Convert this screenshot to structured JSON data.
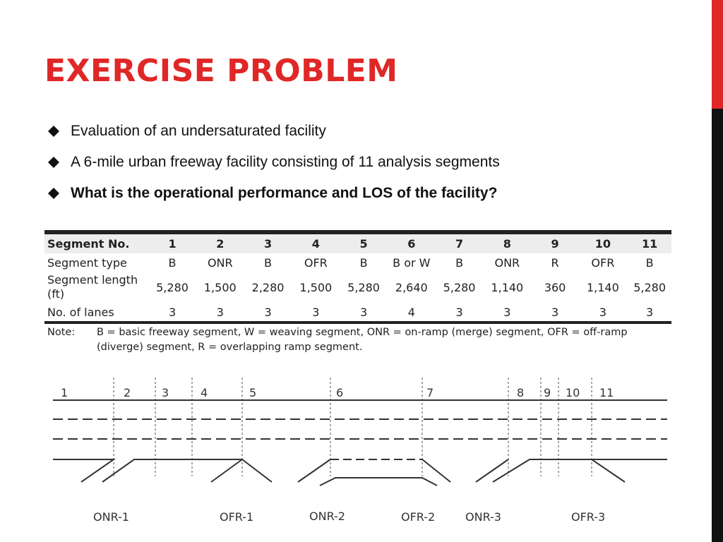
{
  "slide": {
    "title": "EXERCISE PROBLEM",
    "colors": {
      "accent": "#e02727",
      "bar": "#111111"
    }
  },
  "bullets": [
    {
      "text": "Evaluation of an undersaturated facility",
      "icon": "diamond-icon"
    },
    {
      "text": "A 6-mile urban freeway facility consisting of 11 analysis segments",
      "icon": "diamond-icon"
    },
    {
      "text": "What is the operational performance and LOS of the facility?",
      "icon": "diamond-icon"
    }
  ],
  "table": {
    "header_label": "Segment No.",
    "segment_numbers": [
      "1",
      "2",
      "3",
      "4",
      "5",
      "6",
      "7",
      "8",
      "9",
      "10",
      "11"
    ],
    "type_label": "Segment type",
    "types": [
      "B",
      "ONR",
      "B",
      "OFR",
      "B",
      "B or W",
      "B",
      "ONR",
      "R",
      "OFR",
      "B"
    ],
    "length_label_1": "Segment length",
    "length_label_2": "(ft)",
    "lengths": [
      "5,280",
      "1,500",
      "2,280",
      "1,500",
      "5,280",
      "2,640",
      "5,280",
      "1,140",
      "360",
      "1,140",
      "5,280"
    ],
    "lanes_label": "No. of lanes",
    "lanes": [
      "3",
      "3",
      "3",
      "3",
      "3",
      "4",
      "3",
      "3",
      "3",
      "3",
      "3"
    ],
    "note_label": "Note:",
    "note_text": "B = basic freeway segment, W = weaving segment, ONR = on-ramp (merge) segment, OFR = off-ramp (diverge) segment, R = overlapping ramp segment."
  },
  "diagram": {
    "segment_labels": [
      "1",
      "2",
      "3",
      "4",
      "5",
      "6",
      "7",
      "8",
      "9",
      "10",
      "11"
    ],
    "ramp_labels": [
      "ONR-1",
      "OFR-1",
      "ONR-2",
      "OFR-2",
      "ONR-3",
      "OFR-3"
    ]
  }
}
